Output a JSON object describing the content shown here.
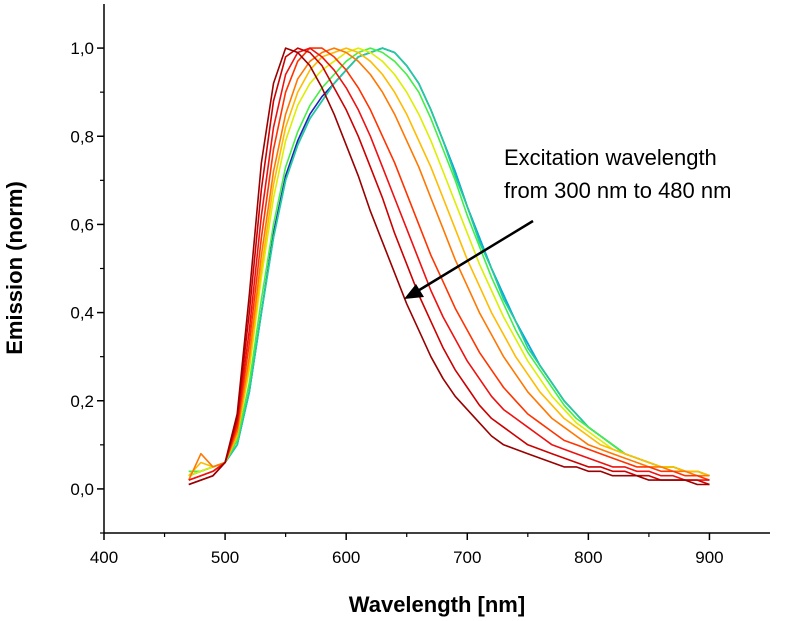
{
  "chart_data": {
    "type": "line",
    "title": "",
    "xlabel": "Wavelength [nm]",
    "ylabel": "Emission (norm)",
    "xlim": [
      400,
      950
    ],
    "ylim": [
      -0.1,
      1.1
    ],
    "x_ticks": [
      400,
      500,
      600,
      700,
      800,
      900
    ],
    "x_tick_labels": [
      "400",
      "500",
      "600",
      "700",
      "800",
      "900"
    ],
    "y_ticks": [
      0.0,
      0.2,
      0.4,
      0.6,
      0.8,
      1.0
    ],
    "y_tick_labels": [
      "0,0",
      "0,2",
      "0,4",
      "0,6",
      "0,8",
      "1,0"
    ],
    "grid": false,
    "legend": "none",
    "annotation": {
      "lines": [
        "Excitation wavelength",
        "from 300 nm to 480 nm"
      ]
    },
    "series": [
      {
        "color": "#2222bb",
        "x": [
          470,
          480,
          490,
          500,
          510,
          520,
          530,
          540,
          550,
          560,
          570,
          580,
          590,
          600,
          610,
          620,
          630,
          640,
          650,
          660,
          670,
          680,
          690,
          700,
          710,
          720,
          730,
          740,
          750,
          760,
          770,
          780,
          790,
          800,
          810,
          820,
          830,
          840,
          850,
          860,
          870,
          880,
          890,
          900
        ],
        "y": [
          0.03,
          0.04,
          0.05,
          0.06,
          0.1,
          0.22,
          0.4,
          0.58,
          0.71,
          0.79,
          0.85,
          0.89,
          0.92,
          0.95,
          0.98,
          0.99,
          1.0,
          0.99,
          0.96,
          0.92,
          0.86,
          0.79,
          0.72,
          0.64,
          0.57,
          0.5,
          0.44,
          0.38,
          0.33,
          0.28,
          0.24,
          0.2,
          0.17,
          0.14,
          0.12,
          0.1,
          0.08,
          0.07,
          0.06,
          0.05,
          0.05,
          0.04,
          0.04,
          0.03
        ]
      },
      {
        "color": "#00b0e0",
        "x": [
          470,
          480,
          490,
          500,
          510,
          520,
          530,
          540,
          550,
          560,
          570,
          580,
          590,
          600,
          610,
          620,
          630,
          640,
          650,
          660,
          670,
          680,
          690,
          700,
          710,
          720,
          730,
          740,
          750,
          760,
          770,
          780,
          790,
          800,
          810,
          820,
          830,
          840,
          850,
          860,
          870,
          880,
          890,
          900
        ],
        "y": [
          0.03,
          0.04,
          0.05,
          0.06,
          0.1,
          0.22,
          0.4,
          0.57,
          0.7,
          0.78,
          0.84,
          0.88,
          0.92,
          0.95,
          0.98,
          0.99,
          1.0,
          0.99,
          0.96,
          0.92,
          0.86,
          0.79,
          0.72,
          0.64,
          0.57,
          0.5,
          0.44,
          0.38,
          0.33,
          0.28,
          0.24,
          0.2,
          0.17,
          0.14,
          0.12,
          0.1,
          0.08,
          0.07,
          0.06,
          0.05,
          0.05,
          0.04,
          0.04,
          0.03
        ]
      },
      {
        "color": "#22cc99",
        "x": [
          470,
          480,
          490,
          500,
          510,
          520,
          530,
          540,
          550,
          560,
          570,
          580,
          590,
          600,
          610,
          620,
          630,
          640,
          650,
          660,
          670,
          680,
          690,
          700,
          710,
          720,
          730,
          740,
          750,
          760,
          770,
          780,
          790,
          800,
          810,
          820,
          830,
          840,
          850,
          860,
          870,
          880,
          890,
          900
        ],
        "y": [
          0.04,
          0.04,
          0.05,
          0.06,
          0.1,
          0.22,
          0.4,
          0.57,
          0.7,
          0.78,
          0.84,
          0.88,
          0.92,
          0.95,
          0.98,
          0.99,
          1.0,
          0.99,
          0.96,
          0.92,
          0.86,
          0.79,
          0.71,
          0.64,
          0.56,
          0.5,
          0.43,
          0.38,
          0.32,
          0.28,
          0.24,
          0.2,
          0.17,
          0.14,
          0.12,
          0.1,
          0.08,
          0.07,
          0.06,
          0.05,
          0.05,
          0.04,
          0.04,
          0.03
        ]
      },
      {
        "color": "#44ee44",
        "x": [
          470,
          480,
          490,
          500,
          510,
          520,
          530,
          540,
          550,
          560,
          570,
          580,
          590,
          600,
          610,
          620,
          630,
          640,
          650,
          660,
          670,
          680,
          690,
          700,
          710,
          720,
          730,
          740,
          750,
          760,
          770,
          780,
          790,
          800,
          810,
          820,
          830,
          840,
          850,
          860,
          870,
          880,
          890,
          900
        ],
        "y": [
          0.04,
          0.04,
          0.05,
          0.06,
          0.11,
          0.24,
          0.43,
          0.6,
          0.73,
          0.81,
          0.87,
          0.91,
          0.94,
          0.97,
          0.99,
          1.0,
          0.99,
          0.97,
          0.94,
          0.9,
          0.84,
          0.77,
          0.7,
          0.62,
          0.55,
          0.48,
          0.42,
          0.36,
          0.31,
          0.27,
          0.23,
          0.19,
          0.16,
          0.14,
          0.12,
          0.1,
          0.08,
          0.07,
          0.06,
          0.05,
          0.05,
          0.04,
          0.04,
          0.03
        ]
      },
      {
        "color": "#ddee00",
        "x": [
          470,
          480,
          490,
          500,
          510,
          520,
          530,
          540,
          550,
          560,
          570,
          580,
          590,
          600,
          610,
          620,
          630,
          640,
          650,
          660,
          670,
          680,
          690,
          700,
          710,
          720,
          730,
          740,
          750,
          760,
          770,
          780,
          790,
          800,
          810,
          820,
          830,
          840,
          850,
          860,
          870,
          880,
          890,
          900
        ],
        "y": [
          0.03,
          0.04,
          0.05,
          0.06,
          0.12,
          0.27,
          0.48,
          0.66,
          0.79,
          0.87,
          0.92,
          0.95,
          0.97,
          0.99,
          1.0,
          0.99,
          0.97,
          0.94,
          0.9,
          0.85,
          0.79,
          0.72,
          0.65,
          0.58,
          0.51,
          0.45,
          0.39,
          0.34,
          0.29,
          0.25,
          0.21,
          0.18,
          0.15,
          0.13,
          0.11,
          0.09,
          0.08,
          0.07,
          0.06,
          0.05,
          0.05,
          0.04,
          0.04,
          0.03
        ]
      },
      {
        "color": "#ffbb00",
        "x": [
          470,
          480,
          490,
          500,
          510,
          520,
          530,
          540,
          550,
          560,
          570,
          580,
          590,
          600,
          610,
          620,
          630,
          640,
          650,
          660,
          670,
          680,
          690,
          700,
          710,
          720,
          730,
          740,
          750,
          760,
          770,
          780,
          790,
          800,
          810,
          820,
          830,
          840,
          850,
          860,
          870,
          880,
          890,
          900
        ],
        "y": [
          0.03,
          0.06,
          0.05,
          0.06,
          0.12,
          0.28,
          0.5,
          0.69,
          0.82,
          0.9,
          0.95,
          0.98,
          0.99,
          1.0,
          0.99,
          0.97,
          0.94,
          0.9,
          0.85,
          0.79,
          0.73,
          0.66,
          0.59,
          0.52,
          0.46,
          0.4,
          0.35,
          0.3,
          0.26,
          0.22,
          0.19,
          0.16,
          0.14,
          0.12,
          0.1,
          0.09,
          0.08,
          0.07,
          0.06,
          0.05,
          0.05,
          0.04,
          0.04,
          0.03
        ]
      },
      {
        "color": "#ff7700",
        "x": [
          470,
          480,
          490,
          500,
          510,
          520,
          530,
          540,
          550,
          560,
          570,
          580,
          590,
          600,
          610,
          620,
          630,
          640,
          650,
          660,
          670,
          680,
          690,
          700,
          710,
          720,
          730,
          740,
          750,
          760,
          770,
          780,
          790,
          800,
          810,
          820,
          830,
          840,
          850,
          860,
          870,
          880,
          890,
          900
        ],
        "y": [
          0.02,
          0.08,
          0.05,
          0.06,
          0.13,
          0.3,
          0.53,
          0.72,
          0.85,
          0.93,
          0.97,
          0.99,
          1.0,
          0.99,
          0.97,
          0.94,
          0.9,
          0.85,
          0.79,
          0.73,
          0.66,
          0.59,
          0.52,
          0.46,
          0.4,
          0.35,
          0.3,
          0.26,
          0.22,
          0.19,
          0.16,
          0.14,
          0.12,
          0.1,
          0.09,
          0.08,
          0.07,
          0.06,
          0.05,
          0.05,
          0.04,
          0.04,
          0.03,
          0.03
        ]
      },
      {
        "color": "#ff3300",
        "x": [
          470,
          480,
          490,
          500,
          510,
          520,
          530,
          540,
          550,
          560,
          570,
          580,
          590,
          600,
          610,
          620,
          630,
          640,
          650,
          660,
          670,
          680,
          690,
          700,
          710,
          720,
          730,
          740,
          750,
          760,
          770,
          780,
          790,
          800,
          810,
          820,
          830,
          840,
          850,
          860,
          870,
          880,
          890,
          900
        ],
        "y": [
          0.02,
          0.03,
          0.04,
          0.06,
          0.14,
          0.33,
          0.57,
          0.77,
          0.9,
          0.97,
          1.0,
          1.0,
          0.98,
          0.95,
          0.91,
          0.86,
          0.8,
          0.74,
          0.67,
          0.6,
          0.53,
          0.47,
          0.41,
          0.36,
          0.31,
          0.27,
          0.23,
          0.2,
          0.17,
          0.15,
          0.13,
          0.11,
          0.1,
          0.09,
          0.08,
          0.07,
          0.06,
          0.05,
          0.05,
          0.04,
          0.04,
          0.03,
          0.03,
          0.02
        ]
      },
      {
        "color": "#ee1111",
        "x": [
          470,
          480,
          490,
          500,
          510,
          520,
          530,
          540,
          550,
          560,
          570,
          580,
          590,
          600,
          610,
          620,
          630,
          640,
          650,
          660,
          670,
          680,
          690,
          700,
          710,
          720,
          730,
          740,
          750,
          760,
          770,
          780,
          790,
          800,
          810,
          820,
          830,
          840,
          850,
          860,
          870,
          880,
          890,
          900
        ],
        "y": [
          0.02,
          0.03,
          0.04,
          0.06,
          0.15,
          0.36,
          0.62,
          0.82,
          0.94,
          0.99,
          1.0,
          0.98,
          0.95,
          0.91,
          0.86,
          0.8,
          0.73,
          0.66,
          0.59,
          0.52,
          0.45,
          0.39,
          0.34,
          0.29,
          0.25,
          0.21,
          0.18,
          0.16,
          0.14,
          0.12,
          0.1,
          0.09,
          0.08,
          0.07,
          0.06,
          0.05,
          0.05,
          0.04,
          0.04,
          0.03,
          0.03,
          0.02,
          0.02,
          0.02
        ]
      },
      {
        "color": "#cc0000",
        "x": [
          470,
          480,
          490,
          500,
          510,
          520,
          530,
          540,
          550,
          560,
          570,
          580,
          590,
          600,
          610,
          620,
          630,
          640,
          650,
          660,
          670,
          680,
          690,
          700,
          710,
          720,
          730,
          740,
          750,
          760,
          770,
          780,
          790,
          800,
          810,
          820,
          830,
          840,
          850,
          860,
          870,
          880,
          890,
          900
        ],
        "y": [
          0.01,
          0.02,
          0.03,
          0.06,
          0.16,
          0.4,
          0.68,
          0.88,
          0.98,
          1.0,
          0.99,
          0.96,
          0.91,
          0.86,
          0.8,
          0.73,
          0.66,
          0.58,
          0.51,
          0.44,
          0.38,
          0.32,
          0.27,
          0.23,
          0.19,
          0.16,
          0.14,
          0.12,
          0.1,
          0.09,
          0.08,
          0.07,
          0.06,
          0.05,
          0.05,
          0.04,
          0.04,
          0.03,
          0.03,
          0.02,
          0.02,
          0.02,
          0.02,
          0.01
        ]
      },
      {
        "color": "#990000",
        "x": [
          470,
          480,
          490,
          500,
          510,
          520,
          530,
          540,
          550,
          560,
          570,
          580,
          590,
          600,
          610,
          620,
          630,
          640,
          650,
          660,
          670,
          680,
          690,
          700,
          710,
          720,
          730,
          740,
          750,
          760,
          770,
          780,
          790,
          800,
          810,
          820,
          830,
          840,
          850,
          860,
          870,
          880,
          890,
          900
        ],
        "y": [
          0.01,
          0.02,
          0.03,
          0.06,
          0.17,
          0.44,
          0.74,
          0.92,
          1.0,
          0.99,
          0.96,
          0.91,
          0.85,
          0.78,
          0.71,
          0.63,
          0.56,
          0.49,
          0.42,
          0.36,
          0.3,
          0.25,
          0.21,
          0.18,
          0.15,
          0.12,
          0.1,
          0.09,
          0.08,
          0.07,
          0.06,
          0.05,
          0.05,
          0.04,
          0.04,
          0.03,
          0.03,
          0.03,
          0.02,
          0.02,
          0.02,
          0.02,
          0.01,
          0.01
        ]
      }
    ]
  }
}
